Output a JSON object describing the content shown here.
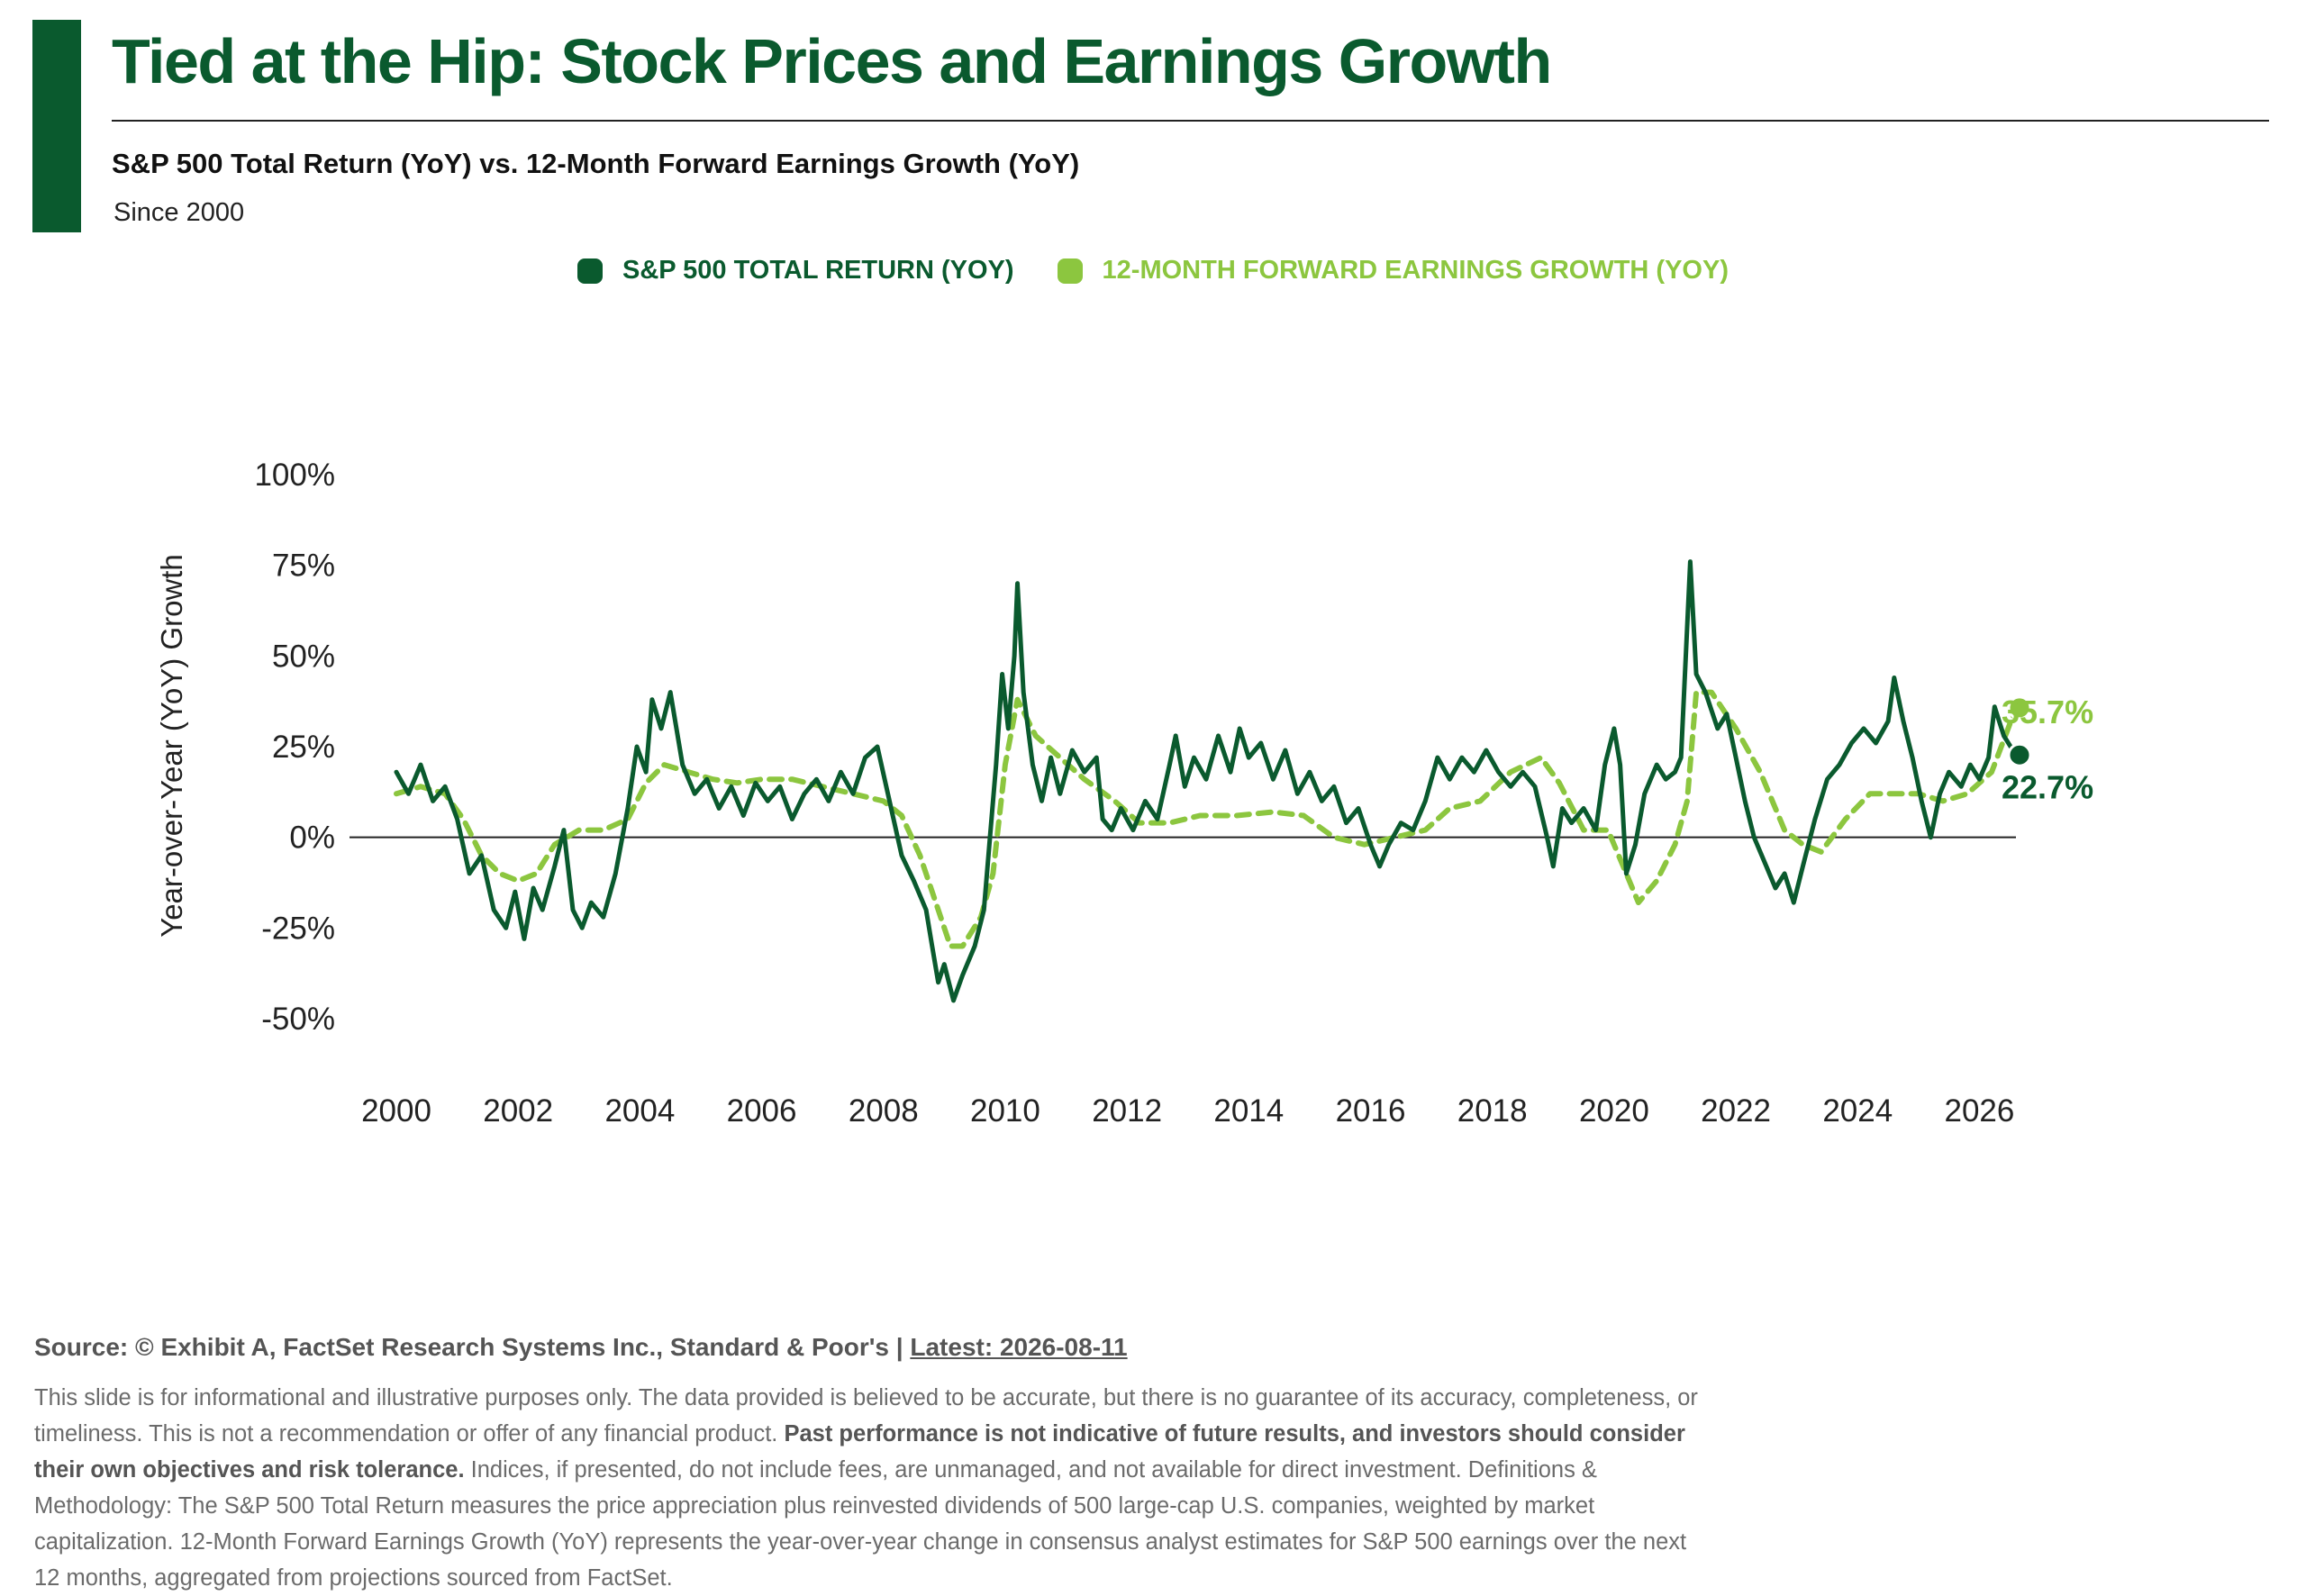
{
  "header": {
    "title": "Tied at the Hip: Stock Prices and Earnings Growth",
    "subtitle": "S&P 500 Total Return (YoY) vs. 12-Month Forward Earnings Growth (YoY)",
    "since": "Since 2000"
  },
  "legend": {
    "items": [
      {
        "label": "S&P 500 TOTAL RETURN (YOY)",
        "color": "#0a5a2e"
      },
      {
        "label": "12-MONTH FORWARD EARNINGS GROWTH (YOY)",
        "color": "#8cc63f"
      }
    ]
  },
  "footer": {
    "source_prefix": "Source: © Exhibit A, FactSet Research Systems Inc., Standard & Poor's | ",
    "latest": "Latest: 2026-08-11",
    "disclaimer_1": "This slide is for informational and illustrative purposes only. The data provided is believed to be accurate, but there is no guarantee of its accuracy, completeness, or timeliness. This is not a recommendation or offer of any financial product. ",
    "disclaimer_bold": "Past performance is not indicative of future results, and investors should consider their own objectives and risk tolerance.",
    "disclaimer_2": " Indices, if presented, do not include fees, are unmanaged, and not available for direct investment. Definitions & Methodology: The S&P 500 Total Return measures the price appreciation plus reinvested dividends of 500 large-cap U.S. companies, weighted by market capitalization. 12-Month Forward Earnings Growth (YoY) represents the year-over-year change in consensus analyst estimates for S&P 500 earnings over the next 12 months, aggregated from projections sourced from FactSet."
  },
  "chart_data": {
    "type": "line",
    "ylabel": "Year-over-Year (YoY) Growth",
    "xlabel": "",
    "ylim": [
      -50,
      100
    ],
    "xlim": [
      2000,
      2026.6
    ],
    "y_ticks": [
      -50,
      -25,
      0,
      25,
      50,
      75,
      100
    ],
    "y_tick_labels": [
      "-50%",
      "-25%",
      "0%",
      "25%",
      "50%",
      "75%",
      "100%"
    ],
    "x_ticks": [
      2000,
      2002,
      2004,
      2006,
      2008,
      2010,
      2012,
      2014,
      2016,
      2018,
      2020,
      2022,
      2024,
      2026
    ],
    "x_tick_labels": [
      "2000",
      "2002",
      "2004",
      "2006",
      "2008",
      "2010",
      "2012",
      "2014",
      "2016",
      "2018",
      "2020",
      "2022",
      "2024",
      "2026"
    ],
    "zero_line": true,
    "grid": false,
    "series": [
      {
        "name": "S&P 500 TOTAL RETURN (YOY)",
        "color": "#0a5a2e",
        "style": "solid",
        "end_label": "22.7%",
        "end_value": 22.7,
        "points": [
          [
            2000.0,
            18
          ],
          [
            2000.2,
            12
          ],
          [
            2000.4,
            20
          ],
          [
            2000.6,
            10
          ],
          [
            2000.8,
            14
          ],
          [
            2001.0,
            5
          ],
          [
            2001.2,
            -10
          ],
          [
            2001.4,
            -5
          ],
          [
            2001.6,
            -20
          ],
          [
            2001.8,
            -25
          ],
          [
            2001.95,
            -15
          ],
          [
            2002.1,
            -28
          ],
          [
            2002.25,
            -14
          ],
          [
            2002.4,
            -20
          ],
          [
            2002.6,
            -8
          ],
          [
            2002.75,
            2
          ],
          [
            2002.9,
            -20
          ],
          [
            2003.05,
            -25
          ],
          [
            2003.2,
            -18
          ],
          [
            2003.4,
            -22
          ],
          [
            2003.6,
            -10
          ],
          [
            2003.8,
            8
          ],
          [
            2003.95,
            25
          ],
          [
            2004.1,
            18
          ],
          [
            2004.2,
            38
          ],
          [
            2004.35,
            30
          ],
          [
            2004.5,
            40
          ],
          [
            2004.7,
            20
          ],
          [
            2004.9,
            12
          ],
          [
            2005.1,
            16
          ],
          [
            2005.3,
            8
          ],
          [
            2005.5,
            14
          ],
          [
            2005.7,
            6
          ],
          [
            2005.9,
            15
          ],
          [
            2006.1,
            10
          ],
          [
            2006.3,
            14
          ],
          [
            2006.5,
            5
          ],
          [
            2006.7,
            12
          ],
          [
            2006.9,
            16
          ],
          [
            2007.1,
            10
          ],
          [
            2007.3,
            18
          ],
          [
            2007.5,
            12
          ],
          [
            2007.7,
            22
          ],
          [
            2007.9,
            25
          ],
          [
            2008.1,
            10
          ],
          [
            2008.3,
            -5
          ],
          [
            2008.5,
            -12
          ],
          [
            2008.7,
            -20
          ],
          [
            2008.8,
            -30
          ],
          [
            2008.9,
            -40
          ],
          [
            2009.0,
            -35
          ],
          [
            2009.15,
            -45
          ],
          [
            2009.3,
            -38
          ],
          [
            2009.5,
            -30
          ],
          [
            2009.65,
            -20
          ],
          [
            2009.75,
            0
          ],
          [
            2009.85,
            20
          ],
          [
            2009.95,
            45
          ],
          [
            2010.05,
            30
          ],
          [
            2010.15,
            50
          ],
          [
            2010.2,
            70
          ],
          [
            2010.3,
            40
          ],
          [
            2010.45,
            20
          ],
          [
            2010.6,
            10
          ],
          [
            2010.75,
            22
          ],
          [
            2010.9,
            12
          ],
          [
            2011.1,
            24
          ],
          [
            2011.3,
            18
          ],
          [
            2011.5,
            22
          ],
          [
            2011.6,
            5
          ],
          [
            2011.75,
            2
          ],
          [
            2011.9,
            8
          ],
          [
            2012.1,
            2
          ],
          [
            2012.3,
            10
          ],
          [
            2012.5,
            5
          ],
          [
            2012.7,
            20
          ],
          [
            2012.8,
            28
          ],
          [
            2012.95,
            14
          ],
          [
            2013.1,
            22
          ],
          [
            2013.3,
            16
          ],
          [
            2013.5,
            28
          ],
          [
            2013.7,
            18
          ],
          [
            2013.85,
            30
          ],
          [
            2014.0,
            22
          ],
          [
            2014.2,
            26
          ],
          [
            2014.4,
            16
          ],
          [
            2014.6,
            24
          ],
          [
            2014.8,
            12
          ],
          [
            2015.0,
            18
          ],
          [
            2015.2,
            10
          ],
          [
            2015.4,
            14
          ],
          [
            2015.6,
            4
          ],
          [
            2015.8,
            8
          ],
          [
            2016.0,
            -2
          ],
          [
            2016.15,
            -8
          ],
          [
            2016.3,
            -2
          ],
          [
            2016.5,
            4
          ],
          [
            2016.7,
            2
          ],
          [
            2016.9,
            10
          ],
          [
            2017.1,
            22
          ],
          [
            2017.3,
            16
          ],
          [
            2017.5,
            22
          ],
          [
            2017.7,
            18
          ],
          [
            2017.9,
            24
          ],
          [
            2018.1,
            18
          ],
          [
            2018.3,
            14
          ],
          [
            2018.5,
            18
          ],
          [
            2018.7,
            14
          ],
          [
            2018.9,
            0
          ],
          [
            2019.0,
            -8
          ],
          [
            2019.15,
            8
          ],
          [
            2019.3,
            4
          ],
          [
            2019.5,
            8
          ],
          [
            2019.7,
            2
          ],
          [
            2019.85,
            20
          ],
          [
            2020.0,
            30
          ],
          [
            2020.1,
            20
          ],
          [
            2020.2,
            -10
          ],
          [
            2020.35,
            -2
          ],
          [
            2020.5,
            12
          ],
          [
            2020.7,
            20
          ],
          [
            2020.85,
            16
          ],
          [
            2021.0,
            18
          ],
          [
            2021.1,
            22
          ],
          [
            2021.25,
            76
          ],
          [
            2021.35,
            45
          ],
          [
            2021.5,
            40
          ],
          [
            2021.7,
            30
          ],
          [
            2021.85,
            34
          ],
          [
            2022.0,
            22
          ],
          [
            2022.15,
            10
          ],
          [
            2022.3,
            0
          ],
          [
            2022.5,
            -8
          ],
          [
            2022.65,
            -14
          ],
          [
            2022.8,
            -10
          ],
          [
            2022.95,
            -18
          ],
          [
            2023.1,
            -8
          ],
          [
            2023.3,
            5
          ],
          [
            2023.5,
            16
          ],
          [
            2023.7,
            20
          ],
          [
            2023.9,
            26
          ],
          [
            2024.1,
            30
          ],
          [
            2024.3,
            26
          ],
          [
            2024.5,
            32
          ],
          [
            2024.6,
            44
          ],
          [
            2024.75,
            32
          ],
          [
            2024.9,
            22
          ],
          [
            2025.05,
            10
          ],
          [
            2025.2,
            0
          ],
          [
            2025.35,
            12
          ],
          [
            2025.5,
            18
          ],
          [
            2025.7,
            14
          ],
          [
            2025.85,
            20
          ],
          [
            2026.0,
            16
          ],
          [
            2026.15,
            22
          ],
          [
            2026.25,
            36
          ],
          [
            2026.4,
            28
          ],
          [
            2026.6,
            22.7
          ]
        ]
      },
      {
        "name": "12-MONTH FORWARD EARNINGS GROWTH (YOY)",
        "color": "#8cc63f",
        "style": "dashed",
        "end_label": "35.7%",
        "end_value": 35.7,
        "points": [
          [
            2000.0,
            12
          ],
          [
            2000.4,
            14
          ],
          [
            2000.8,
            12
          ],
          [
            2001.1,
            5
          ],
          [
            2001.4,
            -5
          ],
          [
            2001.7,
            -10
          ],
          [
            2002.0,
            -12
          ],
          [
            2002.3,
            -10
          ],
          [
            2002.6,
            -2
          ],
          [
            2003.0,
            2
          ],
          [
            2003.4,
            2
          ],
          [
            2003.8,
            5
          ],
          [
            2004.1,
            15
          ],
          [
            2004.4,
            20
          ],
          [
            2004.8,
            18
          ],
          [
            2005.2,
            16
          ],
          [
            2005.6,
            15
          ],
          [
            2006.0,
            16
          ],
          [
            2006.5,
            16
          ],
          [
            2007.0,
            14
          ],
          [
            2007.5,
            12
          ],
          [
            2008.0,
            10
          ],
          [
            2008.3,
            6
          ],
          [
            2008.6,
            -5
          ],
          [
            2008.9,
            -20
          ],
          [
            2009.1,
            -30
          ],
          [
            2009.3,
            -30
          ],
          [
            2009.6,
            -22
          ],
          [
            2009.8,
            -10
          ],
          [
            2010.0,
            20
          ],
          [
            2010.2,
            38
          ],
          [
            2010.5,
            28
          ],
          [
            2010.9,
            22
          ],
          [
            2011.3,
            16
          ],
          [
            2011.8,
            10
          ],
          [
            2012.2,
            4
          ],
          [
            2012.7,
            4
          ],
          [
            2013.2,
            6
          ],
          [
            2013.8,
            6
          ],
          [
            2014.4,
            7
          ],
          [
            2014.9,
            6
          ],
          [
            2015.4,
            0
          ],
          [
            2015.9,
            -2
          ],
          [
            2016.4,
            0
          ],
          [
            2016.9,
            2
          ],
          [
            2017.3,
            8
          ],
          [
            2017.8,
            10
          ],
          [
            2018.3,
            18
          ],
          [
            2018.8,
            22
          ],
          [
            2019.1,
            15
          ],
          [
            2019.5,
            2
          ],
          [
            2019.9,
            2
          ],
          [
            2020.2,
            -10
          ],
          [
            2020.4,
            -18
          ],
          [
            2020.7,
            -12
          ],
          [
            2021.0,
            -2
          ],
          [
            2021.2,
            10
          ],
          [
            2021.35,
            40
          ],
          [
            2021.6,
            40
          ],
          [
            2022.0,
            30
          ],
          [
            2022.4,
            18
          ],
          [
            2022.8,
            2
          ],
          [
            2023.1,
            -2
          ],
          [
            2023.4,
            -4
          ],
          [
            2023.8,
            5
          ],
          [
            2024.2,
            12
          ],
          [
            2024.6,
            12
          ],
          [
            2025.0,
            12
          ],
          [
            2025.4,
            10
          ],
          [
            2025.8,
            12
          ],
          [
            2026.2,
            18
          ],
          [
            2026.6,
            35.7
          ]
        ]
      }
    ]
  }
}
